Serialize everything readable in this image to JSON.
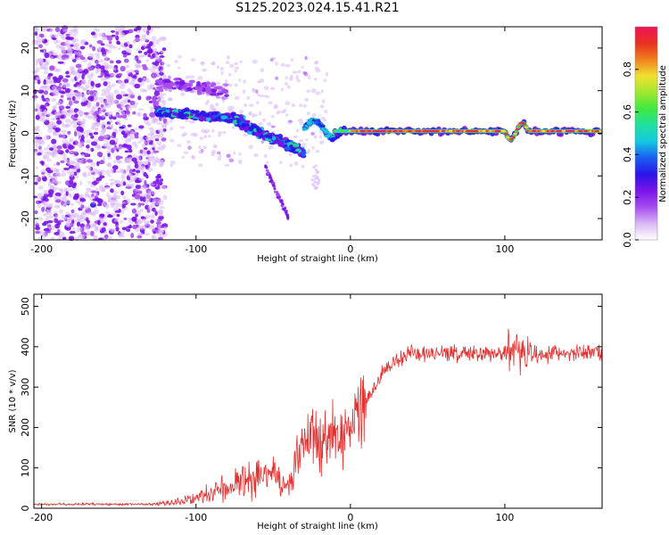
{
  "title": "S125.2023.024.15.41.R21",
  "colors": {
    "snr_line": "#e53030",
    "colormap": [
      "#ffffff",
      "#d9b8f5",
      "#a64df0",
      "#7a14e8",
      "#2a14e8",
      "#1a5ef0",
      "#14c8e0",
      "#20e0a0",
      "#40e840",
      "#a0e830",
      "#f0e030",
      "#f08020",
      "#e83020",
      "#f0145a"
    ]
  },
  "chart_data": [
    {
      "type": "heatmap",
      "xlabel": "Height of straight line (km)",
      "ylabel": "Frequency (Hz)",
      "xlim": [
        -205,
        163
      ],
      "ylim": [
        -25,
        25
      ],
      "xticks": [
        -200,
        -100,
        0,
        100
      ],
      "xtick_labels": [
        "-200",
        "-100",
        "0",
        "100"
      ],
      "yticks": [
        -20,
        -10,
        0,
        10,
        20
      ],
      "ytick_labels": [
        "-20",
        "-10",
        "0",
        "10",
        "20"
      ],
      "grid": false,
      "colorbar": {
        "label": "Normalized spectral amplitude",
        "range": [
          0,
          1
        ],
        "ticks": [
          0.0,
          0.2,
          0.4,
          0.6,
          0.8
        ],
        "tick_labels": [
          "0.0",
          "0.2",
          "0.4",
          "0.6",
          "0.8"
        ]
      },
      "features": [
        {
          "description": "scattered low-amplitude noise",
          "x": [
            -205,
            -120
          ],
          "freq": [
            -25,
            25
          ],
          "amplitude": 0.2
        },
        {
          "description": "strong ridge",
          "x": [
            -125,
            -70
          ],
          "freq": [
            4,
            6
          ],
          "amplitude": 0.5
        },
        {
          "description": "weaker branch",
          "x": [
            -125,
            -80
          ],
          "freq": [
            8,
            14
          ],
          "amplitude": 0.15
        },
        {
          "description": "descending ridge",
          "x": [
            -75,
            -30
          ],
          "freq": [
            -5,
            3
          ],
          "amplitude": 0.5
        },
        {
          "description": "negative branch",
          "x": [
            -55,
            -40
          ],
          "freq": [
            -20,
            -8
          ],
          "amplitude": 0.1
        },
        {
          "description": "stable carrier line",
          "x": [
            -30,
            163
          ],
          "freq": [
            0.5,
            0.5
          ],
          "amplitude": 1.0
        }
      ]
    },
    {
      "type": "line",
      "xlabel": "Height of straight line (km)",
      "ylabel": "SNR (10 * v/v)",
      "xlim": [
        -205,
        163
      ],
      "ylim": [
        0,
        530
      ],
      "xticks": [
        -200,
        -100,
        0,
        100
      ],
      "xtick_labels": [
        "-200",
        "-100",
        "0",
        "100"
      ],
      "yticks": [
        0,
        100,
        200,
        300,
        400,
        500
      ],
      "ytick_labels": [
        "0",
        "100",
        "200",
        "300",
        "400",
        "500"
      ],
      "grid": false,
      "series": [
        {
          "x": [
            -205,
            -180,
            -150,
            -125,
            -115,
            -100,
            -90,
            -80,
            -70,
            -60,
            -50,
            -40,
            -35,
            -30,
            -20,
            -10,
            -5,
            0,
            5,
            10,
            20,
            30,
            40,
            60,
            80,
            100,
            110,
            120,
            140,
            163
          ],
          "y": [
            10,
            10,
            10,
            10,
            15,
            25,
            40,
            55,
            65,
            80,
            80,
            55,
            110,
            180,
            170,
            175,
            180,
            200,
            230,
            260,
            330,
            370,
            385,
            380,
            385,
            385,
            390,
            380,
            385,
            385
          ]
        }
      ]
    }
  ]
}
